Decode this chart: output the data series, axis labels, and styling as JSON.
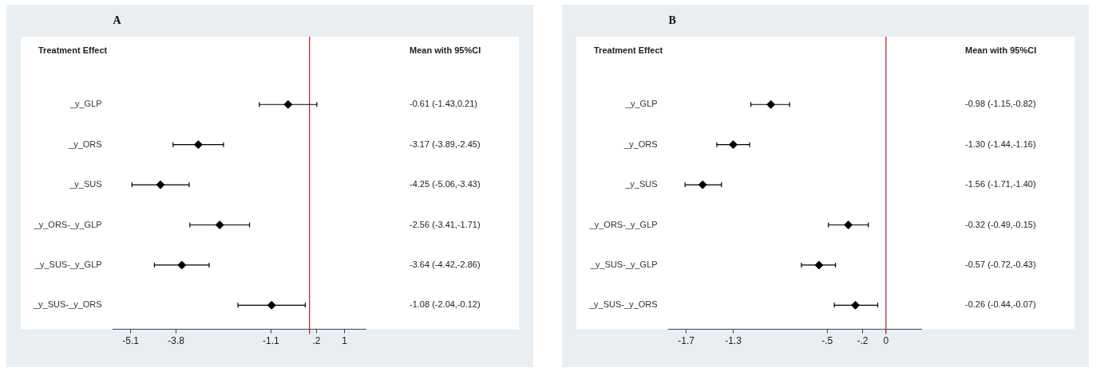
{
  "chart_data": [
    {
      "type": "scatter",
      "title": "A",
      "ylabel": "Treatment Effect",
      "annotations": [
        "Mean with 95%CI"
      ],
      "orientation": "horizontal",
      "categories": [
        "_y_GLP",
        "_y_ORS",
        "_y_SUS",
        "_y_ORS-_y_GLP",
        "_y_SUS-_y_GLP",
        "_y_SUS-_y_ORS"
      ],
      "series": [
        {
          "color": "#000000",
          "values": [
            -0.61,
            -3.17,
            -4.25,
            -2.56,
            -3.64,
            -1.08
          ],
          "errors": [
            [
              -1.43,
              0.21
            ],
            [
              -3.89,
              -2.45
            ],
            [
              -5.06,
              -3.43
            ],
            [
              -3.41,
              -1.71
            ],
            [
              -4.42,
              -2.86
            ],
            [
              -2.04,
              -0.12
            ]
          ],
          "value_labels": [
            "-0.61 (-1.43,0.21)",
            "-3.17 (-3.89,-2.45)",
            "-4.25 (-5.06,-3.43)",
            "-2.56 (-3.41,-1.71)",
            "-3.64 (-4.42,-2.86)",
            "-1.08 (-2.04,-0.12)"
          ]
        }
      ],
      "xlim": [
        -5.6,
        1.6
      ],
      "xticks": [
        -5.1,
        -3.8,
        -1.1,
        {
          "value": 0.2,
          "label": ".2"
        },
        1
      ],
      "ref_lines": [
        {
          "axis": "x",
          "value": 0,
          "color": "#b22a4a"
        }
      ],
      "marker": "diamond",
      "grid": false,
      "legend": false,
      "tick_labels": "x"
    },
    {
      "type": "scatter",
      "title": "B",
      "ylabel": "Treatment Effect",
      "annotations": [
        "Mean with 95%CI"
      ],
      "orientation": "horizontal",
      "categories": [
        "_y_GLP",
        "_y_ORS",
        "_y_SUS",
        "_y_ORS-_y_GLP",
        "_y_SUS-_y_GLP",
        "_y_SUS-_y_ORS"
      ],
      "series": [
        {
          "color": "#000000",
          "values": [
            -0.98,
            -1.3,
            -1.56,
            -0.32,
            -0.57,
            -0.26
          ],
          "errors": [
            [
              -1.15,
              -0.82
            ],
            [
              -1.44,
              -1.16
            ],
            [
              -1.71,
              -1.4
            ],
            [
              -0.49,
              -0.15
            ],
            [
              -0.72,
              -0.43
            ],
            [
              -0.44,
              -0.07
            ]
          ],
          "value_labels": [
            "-0.98 (-1.15,-0.82)",
            "-1.30 (-1.44,-1.16)",
            "-1.56 (-1.71,-1.40)",
            "-0.32 (-0.49,-0.15)",
            "-0.57 (-0.72,-0.43)",
            "-0.26 (-0.44,-0.07)"
          ]
        }
      ],
      "xlim": [
        -1.85,
        0.3
      ],
      "xticks": [
        -1.7,
        -1.3,
        {
          "value": -0.5,
          "label": "-.5"
        },
        {
          "value": -0.2,
          "label": "-.2"
        },
        0
      ],
      "ref_lines": [
        {
          "axis": "x",
          "value": 0,
          "color": "#b22a4a"
        }
      ],
      "marker": "diamond",
      "grid": false,
      "legend": false,
      "tick_labels": "x"
    }
  ]
}
